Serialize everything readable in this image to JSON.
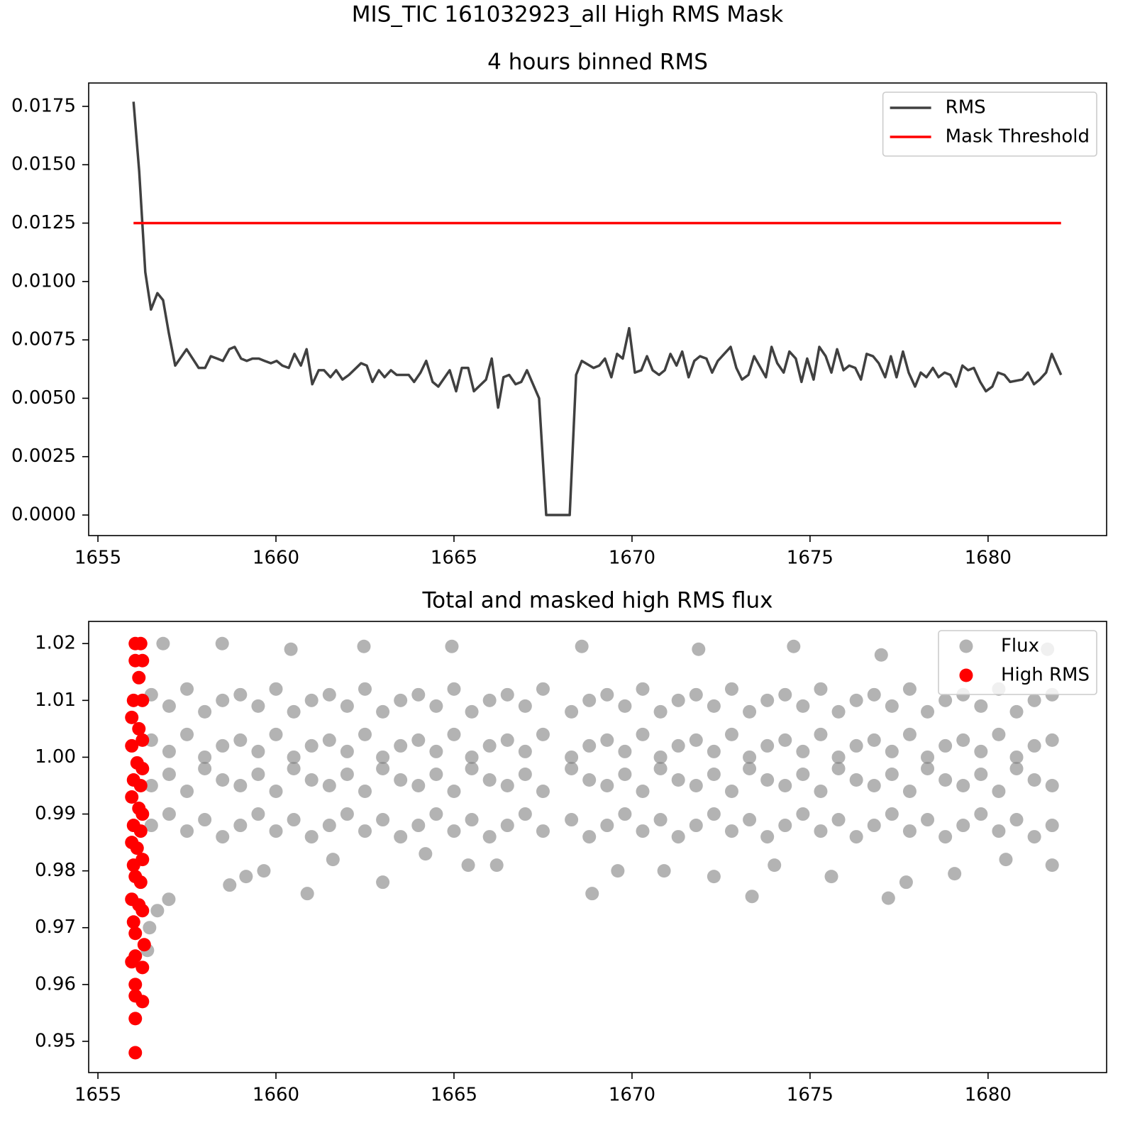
{
  "title": "MIS_TIC 161032923_all High RMS Mask",
  "chart_data": [
    {
      "type": "line",
      "title": "4 hours binned RMS",
      "xlim": [
        1654.74,
        1683.33
      ],
      "xticks": [
        1655,
        1660,
        1665,
        1670,
        1675,
        1680
      ],
      "ylim": [
        -0.00088,
        0.0185
      ],
      "yticks": [
        {
          "value": 0,
          "label": "0.0000"
        },
        0.0025,
        {
          "value": 0.005,
          "label": "0.0050"
        },
        0.0075,
        {
          "value": 0.01,
          "label": "0.0100"
        },
        0.0125,
        {
          "value": 0.015,
          "label": "0.0150"
        },
        0.0175
      ],
      "grid": false,
      "legend": "upper right",
      "series": [
        {
          "name": "RMS",
          "color": "#404040",
          "x": [
            1656.0,
            1656.16,
            1656.33,
            1656.49,
            1656.67,
            1656.83,
            1656.99,
            1657.17,
            1657.49,
            1657.83,
            1658.01,
            1658.17,
            1658.35,
            1658.51,
            1658.69,
            1658.84,
            1659.02,
            1659.18,
            1659.34,
            1659.52,
            1659.68,
            1659.86,
            1660.02,
            1660.18,
            1660.36,
            1660.52,
            1660.7,
            1660.86,
            1661.02,
            1661.2,
            1661.35,
            1661.53,
            1661.69,
            1661.87,
            1662.05,
            1662.39,
            1662.55,
            1662.71,
            1662.89,
            1663.05,
            1663.23,
            1663.39,
            1663.73,
            1663.88,
            1664.06,
            1664.22,
            1664.4,
            1664.56,
            1664.88,
            1665.06,
            1665.22,
            1665.4,
            1665.56,
            1665.9,
            1666.06,
            1666.24,
            1666.39,
            1666.55,
            1666.73,
            1666.89,
            1667.05,
            1667.39,
            1667.59,
            1668.25,
            1668.43,
            1668.59,
            1668.92,
            1669.08,
            1669.24,
            1669.42,
            1669.58,
            1669.74,
            1669.92,
            1670.08,
            1670.26,
            1670.42,
            1670.58,
            1670.76,
            1670.92,
            1671.08,
            1671.25,
            1671.41,
            1671.59,
            1671.75,
            1671.91,
            1672.09,
            1672.25,
            1672.41,
            1672.77,
            1672.93,
            1673.09,
            1673.27,
            1673.43,
            1673.76,
            1673.92,
            1674.08,
            1674.26,
            1674.42,
            1674.6,
            1674.76,
            1674.92,
            1675.1,
            1675.26,
            1675.44,
            1675.6,
            1675.76,
            1675.94,
            1676.1,
            1676.27,
            1676.43,
            1676.59,
            1676.77,
            1676.93,
            1677.11,
            1677.27,
            1677.43,
            1677.61,
            1677.77,
            1677.95,
            1678.11,
            1678.27,
            1678.45,
            1678.61,
            1678.78,
            1678.94,
            1679.1,
            1679.28,
            1679.44,
            1679.6,
            1679.78,
            1679.94,
            1680.12,
            1680.28,
            1680.46,
            1680.62,
            1680.96,
            1681.12,
            1681.29,
            1681.45,
            1681.63,
            1681.79,
            1682.05
          ],
          "values": [
            0.0177,
            0.0147,
            0.0104,
            0.0088,
            0.0095,
            0.0092,
            0.0078,
            0.0064,
            0.0071,
            0.0063,
            0.0063,
            0.0068,
            0.0067,
            0.0066,
            0.0071,
            0.0072,
            0.0067,
            0.0066,
            0.0067,
            0.0067,
            0.0066,
            0.0065,
            0.0066,
            0.0064,
            0.0063,
            0.0069,
            0.0064,
            0.0071,
            0.0056,
            0.0062,
            0.0062,
            0.0059,
            0.0062,
            0.0058,
            0.006,
            0.0065,
            0.0064,
            0.0057,
            0.0062,
            0.0059,
            0.0062,
            0.006,
            0.006,
            0.0057,
            0.0061,
            0.0066,
            0.0057,
            0.0055,
            0.0062,
            0.0053,
            0.0063,
            0.0063,
            0.0053,
            0.0058,
            0.0067,
            0.0046,
            0.0059,
            0.006,
            0.0056,
            0.0057,
            0.0062,
            0.005,
            0,
            0,
            0.006,
            0.0066,
            0.0063,
            0.0064,
            0.0067,
            0.0059,
            0.0069,
            0.0067,
            0.008,
            0.0061,
            0.0062,
            0.0068,
            0.0062,
            0.006,
            0.0062,
            0.0069,
            0.0064,
            0.007,
            0.0059,
            0.0066,
            0.0068,
            0.0067,
            0.0061,
            0.0066,
            0.0072,
            0.0063,
            0.0058,
            0.006,
            0.0068,
            0.0059,
            0.0072,
            0.0065,
            0.0061,
            0.007,
            0.0067,
            0.0057,
            0.0067,
            0.0058,
            0.0072,
            0.0068,
            0.0061,
            0.0071,
            0.0062,
            0.0064,
            0.0063,
            0.0058,
            0.0069,
            0.0068,
            0.0065,
            0.0059,
            0.0068,
            0.0059,
            0.007,
            0.0061,
            0.0055,
            0.0061,
            0.0059,
            0.0063,
            0.0059,
            0.0061,
            0.006,
            0.0055,
            0.0064,
            0.0062,
            0.0063,
            0.0057,
            0.0053,
            0.0055,
            0.0061,
            0.006,
            0.0057,
            0.0058,
            0.0061,
            0.0056,
            0.0058,
            0.0061,
            0.0069,
            0.006
          ]
        },
        {
          "name": "Mask Threshold",
          "color": "#ff0000",
          "x": [
            1656.0,
            1682.05
          ],
          "values": [
            0.0125,
            0.0125
          ]
        }
      ]
    },
    {
      "type": "scatter",
      "title": "Total and masked high RMS flux",
      "xlim": [
        1654.74,
        1683.33
      ],
      "xticks": [
        1655,
        1660,
        1665,
        1670,
        1675,
        1680
      ],
      "ylim": [
        0.9445,
        1.0239
      ],
      "yticks": [
        0.95,
        0.96,
        0.97,
        0.98,
        0.99,
        {
          "value": 1.0,
          "label": "1.00"
        },
        1.01,
        1.02
      ],
      "grid": false,
      "legend": "upper right",
      "series": [
        {
          "name": "Flux",
          "color": "#808080",
          "alpha": 0.6,
          "x": [
            1656.5,
            1657,
            1657.5,
            1658,
            1658.5,
            1659,
            1659.5,
            1660,
            1660.5,
            1661,
            1661.5,
            1662,
            1662.5,
            1663,
            1663.5,
            1664,
            1664.5,
            1665,
            1665.5,
            1666,
            1666.5,
            1667,
            1667.5,
            1668.3,
            1668.8,
            1669.3,
            1669.8,
            1670.3,
            1670.8,
            1671.3,
            1671.8,
            1672.3,
            1672.8,
            1673.3,
            1673.8,
            1674.3,
            1674.8,
            1675.3,
            1675.8,
            1676.3,
            1676.8,
            1677.3,
            1677.8,
            1678.3,
            1678.8,
            1679.3,
            1679.8,
            1680.3,
            1680.8,
            1681.3,
            1681.8,
            1656.5,
            1657,
            1657.5,
            1658,
            1658.5,
            1659,
            1659.5,
            1660,
            1660.5,
            1661,
            1661.5,
            1662,
            1662.5,
            1663,
            1663.5,
            1664,
            1664.5,
            1665,
            1665.5,
            1666,
            1666.5,
            1667,
            1667.5,
            1668.3,
            1668.8,
            1669.3,
            1669.8,
            1670.3,
            1670.8,
            1671.3,
            1671.8,
            1672.3,
            1672.8,
            1673.3,
            1673.8,
            1674.3,
            1674.8,
            1675.3,
            1675.8,
            1676.3,
            1676.8,
            1677.3,
            1677.8,
            1678.3,
            1678.8,
            1679.3,
            1679.8,
            1680.3,
            1680.8,
            1681.3,
            1681.8,
            1656.5,
            1657,
            1657.5,
            1658,
            1658.5,
            1659,
            1659.5,
            1660,
            1660.5,
            1661,
            1661.5,
            1662,
            1662.5,
            1663,
            1663.5,
            1664,
            1664.5,
            1665,
            1665.5,
            1666,
            1666.5,
            1667,
            1667.5,
            1668.3,
            1668.8,
            1669.3,
            1669.8,
            1670.3,
            1670.8,
            1671.3,
            1671.8,
            1672.3,
            1672.8,
            1673.3,
            1673.8,
            1674.3,
            1674.8,
            1675.3,
            1675.8,
            1676.3,
            1676.8,
            1677.3,
            1677.8,
            1678.3,
            1678.8,
            1679.3,
            1679.8,
            1680.3,
            1680.8,
            1681.3,
            1681.8,
            1656.5,
            1657,
            1657.5,
            1658,
            1658.5,
            1659,
            1659.5,
            1660,
            1660.5,
            1661,
            1661.5,
            1662,
            1662.5,
            1663,
            1663.5,
            1664,
            1664.5,
            1665,
            1665.5,
            1666,
            1666.5,
            1667,
            1667.5,
            1668.3,
            1668.8,
            1669.3,
            1669.8,
            1670.3,
            1670.8,
            1671.3,
            1671.8,
            1672.3,
            1672.8,
            1673.3,
            1673.8,
            1674.3,
            1674.8,
            1675.3,
            1675.8,
            1676.3,
            1676.8,
            1677.3,
            1677.8,
            1678.3,
            1678.8,
            1679.3,
            1679.8,
            1680.3,
            1680.8,
            1681.3,
            1681.8,
            1656.39,
            1656.45,
            1656.67,
            1656.99,
            1658.7,
            1659.16,
            1659.66,
            1660.88,
            1661.6,
            1663.0,
            1664.2,
            1665.4,
            1666.2,
            1668.88,
            1669.6,
            1670.9,
            1672.3,
            1673.37,
            1674.0,
            1675.6,
            1677.2,
            1677.7,
            1679.06,
            1680.5,
            1681.8,
            1656.83,
            1658.49,
            1660.42,
            1662.47,
            1664.94,
            1668.59,
            1671.87,
            1674.54,
            1677.0,
            1681.67
          ],
          "values": [
            1.011,
            1.009,
            1.012,
            1.008,
            1.01,
            1.011,
            1.009,
            1.012,
            1.008,
            1.01,
            1.011,
            1.009,
            1.012,
            1.008,
            1.01,
            1.011,
            1.009,
            1.012,
            1.008,
            1.01,
            1.011,
            1.009,
            1.012,
            1.008,
            1.01,
            1.011,
            1.009,
            1.012,
            1.008,
            1.01,
            1.011,
            1.009,
            1.012,
            1.008,
            1.01,
            1.011,
            1.009,
            1.012,
            1.008,
            1.01,
            1.011,
            1.009,
            1.012,
            1.008,
            1.01,
            1.011,
            1.009,
            1.012,
            1.008,
            1.01,
            1.011,
            1.003,
            1.001,
            1.004,
            1.0,
            1.002,
            1.003,
            1.001,
            1.004,
            1.0,
            1.002,
            1.003,
            1.001,
            1.004,
            1.0,
            1.002,
            1.003,
            1.001,
            1.004,
            1.0,
            1.002,
            1.003,
            1.001,
            1.004,
            1.0,
            1.002,
            1.003,
            1.001,
            1.004,
            1.0,
            1.002,
            1.003,
            1.001,
            1.004,
            1.0,
            1.002,
            1.003,
            1.001,
            1.004,
            1.0,
            1.002,
            1.003,
            1.001,
            1.004,
            1.0,
            1.002,
            1.003,
            1.001,
            1.004,
            1.0,
            1.002,
            1.003,
            0.995,
            0.997,
            0.994,
            0.998,
            0.996,
            0.995,
            0.997,
            0.994,
            0.998,
            0.996,
            0.995,
            0.997,
            0.994,
            0.998,
            0.996,
            0.995,
            0.997,
            0.994,
            0.998,
            0.996,
            0.995,
            0.997,
            0.994,
            0.998,
            0.996,
            0.995,
            0.997,
            0.994,
            0.998,
            0.996,
            0.995,
            0.997,
            0.994,
            0.998,
            0.996,
            0.995,
            0.997,
            0.994,
            0.998,
            0.996,
            0.995,
            0.997,
            0.994,
            0.998,
            0.996,
            0.995,
            0.997,
            0.994,
            0.998,
            0.996,
            0.995,
            0.988,
            0.99,
            0.987,
            0.989,
            0.986,
            0.988,
            0.99,
            0.987,
            0.989,
            0.986,
            0.988,
            0.99,
            0.987,
            0.989,
            0.986,
            0.988,
            0.99,
            0.987,
            0.989,
            0.986,
            0.988,
            0.99,
            0.987,
            0.989,
            0.986,
            0.988,
            0.99,
            0.987,
            0.989,
            0.986,
            0.988,
            0.99,
            0.987,
            0.989,
            0.986,
            0.988,
            0.99,
            0.987,
            0.989,
            0.986,
            0.988,
            0.99,
            0.987,
            0.989,
            0.986,
            0.988,
            0.99,
            0.987,
            0.989,
            0.986,
            0.988,
            0.966,
            0.97,
            0.973,
            0.975,
            0.9775,
            0.979,
            0.98,
            0.976,
            0.982,
            0.978,
            0.983,
            0.981,
            0.981,
            0.976,
            0.98,
            0.98,
            0.979,
            0.9755,
            0.981,
            0.979,
            0.9752,
            0.978,
            0.9795,
            0.982,
            0.981,
            1.02,
            1.02,
            1.019,
            1.0195,
            1.0195,
            1.0195,
            1.019,
            1.0195,
            1.018,
            1.019
          ]
        },
        {
          "name": "High RMS",
          "color": "#ff0000",
          "alpha": 1,
          "x": [
            1656.05,
            1656.2,
            1656.25,
            1656.05,
            1656.15,
            1656.0,
            1656.25,
            1655.95,
            1656.15,
            1656.25,
            1655.95,
            1656.1,
            1656.25,
            1656.0,
            1656.2,
            1655.95,
            1656.15,
            1656.25,
            1656.0,
            1656.2,
            1655.95,
            1656.1,
            1656.25,
            1656.0,
            1656.05,
            1656.2,
            1655.95,
            1656.15,
            1656.25,
            1656.0,
            1656.05,
            1656.3,
            1656.05,
            1655.95,
            1656.25,
            1656.05,
            1656.05,
            1656.25,
            1656.05,
            1656.05
          ],
          "values": [
            1.02,
            1.02,
            1.017,
            1.017,
            1.014,
            1.01,
            1.01,
            1.007,
            1.005,
            1.003,
            1.002,
            0.999,
            0.998,
            0.996,
            0.995,
            0.993,
            0.991,
            0.99,
            0.988,
            0.987,
            0.985,
            0.984,
            0.982,
            0.981,
            0.979,
            0.978,
            0.975,
            0.974,
            0.973,
            0.971,
            0.969,
            0.967,
            0.965,
            0.964,
            0.963,
            0.96,
            0.958,
            0.957,
            0.954,
            0.948
          ]
        }
      ]
    }
  ]
}
